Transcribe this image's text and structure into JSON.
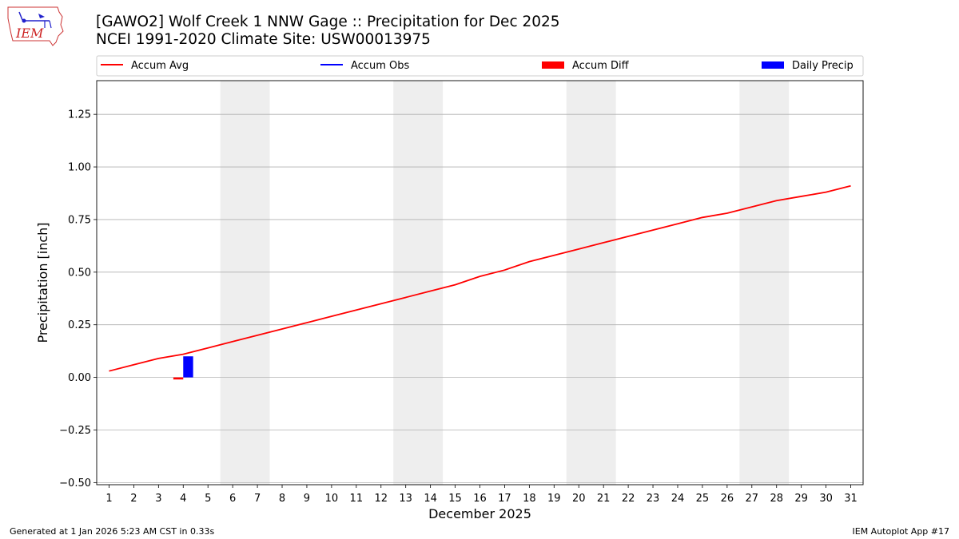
{
  "header": {
    "title_line1": "[GAWO2] Wolf Creek 1 NNW Gage :: Precipitation for Dec 2025",
    "title_line2": "NCEI 1991-2020 Climate Site: USW00013975"
  },
  "logo": {
    "text": "IEM"
  },
  "footer": {
    "generated": "Generated at 1 Jan 2026 5:23 AM CST in 0.33s",
    "app": "IEM Autoplot App #17"
  },
  "colors": {
    "accum_avg": "#ff0000",
    "accum_obs": "#0000ff",
    "accum_diff": "#ff0000",
    "daily_precip": "#0000ff",
    "weekend_shade": "#eeeeee",
    "grid": "#b0b0b0"
  },
  "chart_data": {
    "type": "line",
    "xlabel": "December 2025",
    "ylabel": "Precipitation [inch]",
    "xlim": [
      0.5,
      31.5
    ],
    "ylim": [
      -0.51,
      1.41
    ],
    "x_ticks": [
      1,
      2,
      3,
      4,
      5,
      6,
      7,
      8,
      9,
      10,
      11,
      12,
      13,
      14,
      15,
      16,
      17,
      18,
      19,
      20,
      21,
      22,
      23,
      24,
      25,
      26,
      27,
      28,
      29,
      30,
      31
    ],
    "y_ticks": [
      -0.5,
      -0.25,
      0.0,
      0.25,
      0.5,
      0.75,
      1.0,
      1.25
    ],
    "y_tick_labels": [
      "−0.50",
      "−0.25",
      "0.00",
      "0.25",
      "0.50",
      "0.75",
      "1.00",
      "1.25"
    ],
    "grid": "horizontal",
    "legend": [
      "Accum Avg",
      "Accum Obs",
      "Accum Diff",
      "Daily Precip"
    ],
    "legend_placement": "top",
    "weekend_spans": [
      [
        5.5,
        7.5
      ],
      [
        12.5,
        14.5
      ],
      [
        19.5,
        21.5
      ],
      [
        26.5,
        28.5
      ]
    ],
    "series": [
      {
        "name": "Accum Avg",
        "type": "line",
        "x": [
          1,
          2,
          3,
          4,
          5,
          6,
          7,
          8,
          9,
          10,
          11,
          12,
          13,
          14,
          15,
          16,
          17,
          18,
          19,
          20,
          21,
          22,
          23,
          24,
          25,
          26,
          27,
          28,
          29,
          30,
          31
        ],
        "values": [
          0.03,
          0.06,
          0.09,
          0.11,
          0.14,
          0.17,
          0.2,
          0.23,
          0.26,
          0.29,
          0.32,
          0.35,
          0.38,
          0.41,
          0.44,
          0.48,
          0.51,
          0.55,
          0.58,
          0.61,
          0.64,
          0.67,
          0.7,
          0.73,
          0.76,
          0.78,
          0.81,
          0.84,
          0.86,
          0.88,
          0.91
        ]
      },
      {
        "name": "Accum Obs",
        "type": "line",
        "x": [],
        "values": []
      },
      {
        "name": "Accum Diff",
        "type": "bar",
        "x": [
          4
        ],
        "values": [
          -0.01
        ]
      },
      {
        "name": "Daily Precip",
        "type": "bar",
        "x": [
          4
        ],
        "values": [
          0.1
        ]
      }
    ]
  }
}
